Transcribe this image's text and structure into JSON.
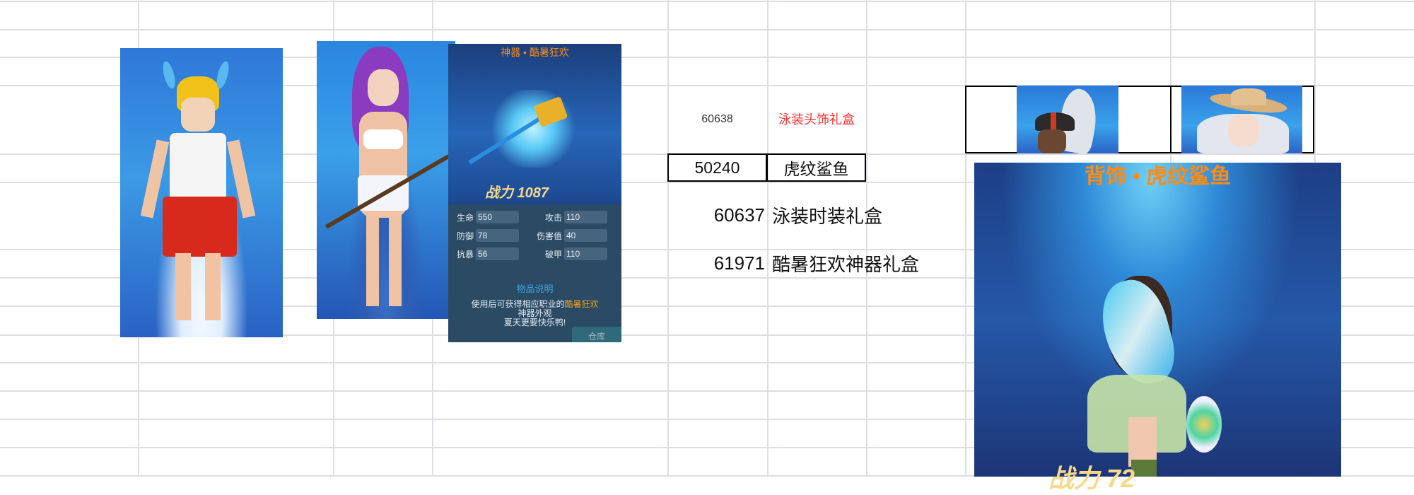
{
  "spreadsheet": {
    "rows": [
      {
        "id": "60638",
        "name": "泳装头饰礼盒",
        "name_color": "#ff3333"
      },
      {
        "id": "50240",
        "name": "虎纹鲨鱼"
      },
      {
        "id": "60637",
        "name": "泳装时装礼盒"
      },
      {
        "id": "61971",
        "name": "酷暑狂欢神器礼盒"
      }
    ]
  },
  "item_panel": {
    "title": "神器 • 酷暑狂欢",
    "power_label": "战力",
    "power_value": "1087",
    "stats": [
      {
        "label": "生命",
        "value": "550"
      },
      {
        "label": "攻击",
        "value": "110"
      },
      {
        "label": "防御",
        "value": "78"
      },
      {
        "label": "伤害值",
        "value": "40"
      },
      {
        "label": "抗暴",
        "value": "56"
      },
      {
        "label": "破甲",
        "value": "110"
      }
    ],
    "desc_heading": "物品说明",
    "desc_prefix": "使用后可获得相应职业的",
    "desc_highlight": "酷暑狂欢",
    "desc_line2": "神器外观",
    "desc_line3": "夏天更要快乐鸭!",
    "store_button": "仓库",
    "title_color": "#ff8a14"
  },
  "back_image": {
    "title": "背饰 • 虎纹鲨鱼",
    "power_label": "战力",
    "power_value": "72"
  }
}
